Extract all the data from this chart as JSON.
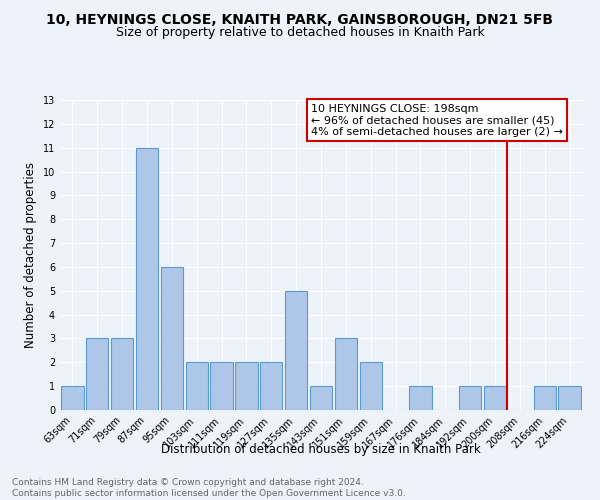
{
  "title": "10, HEYNINGS CLOSE, KNAITH PARK, GAINSBOROUGH, DN21 5FB",
  "subtitle": "Size of property relative to detached houses in Knaith Park",
  "xlabel": "Distribution of detached houses by size in Knaith Park",
  "ylabel": "Number of detached properties",
  "bar_labels": [
    "63sqm",
    "71sqm",
    "79sqm",
    "87sqm",
    "95sqm",
    "103sqm",
    "111sqm",
    "119sqm",
    "127sqm",
    "135sqm",
    "143sqm",
    "151sqm",
    "159sqm",
    "167sqm",
    "176sqm",
    "184sqm",
    "192sqm",
    "200sqm",
    "208sqm",
    "216sqm",
    "224sqm"
  ],
  "bar_values": [
    1,
    3,
    3,
    11,
    6,
    2,
    2,
    2,
    2,
    5,
    1,
    3,
    2,
    0,
    1,
    0,
    1,
    1,
    0,
    1,
    1
  ],
  "bar_color": "#aec6e8",
  "bar_edge_color": "#5b9bd5",
  "vline_color": "#cc0000",
  "vline_idx": 17.5,
  "annotation_text": "10 HEYNINGS CLOSE: 198sqm\n← 96% of detached houses are smaller (45)\n4% of semi-detached houses are larger (2) →",
  "annotation_box_color": "#cc0000",
  "ylim": [
    0,
    13
  ],
  "yticks": [
    0,
    1,
    2,
    3,
    4,
    5,
    6,
    7,
    8,
    9,
    10,
    11,
    12,
    13
  ],
  "footnote": "Contains HM Land Registry data © Crown copyright and database right 2024.\nContains public sector information licensed under the Open Government Licence v3.0.",
  "background_color": "#eef2f9",
  "grid_color": "#ffffff",
  "title_fontsize": 10,
  "subtitle_fontsize": 9,
  "xlabel_fontsize": 8.5,
  "ylabel_fontsize": 8.5,
  "tick_fontsize": 7,
  "annotation_fontsize": 8,
  "footnote_fontsize": 6.5
}
